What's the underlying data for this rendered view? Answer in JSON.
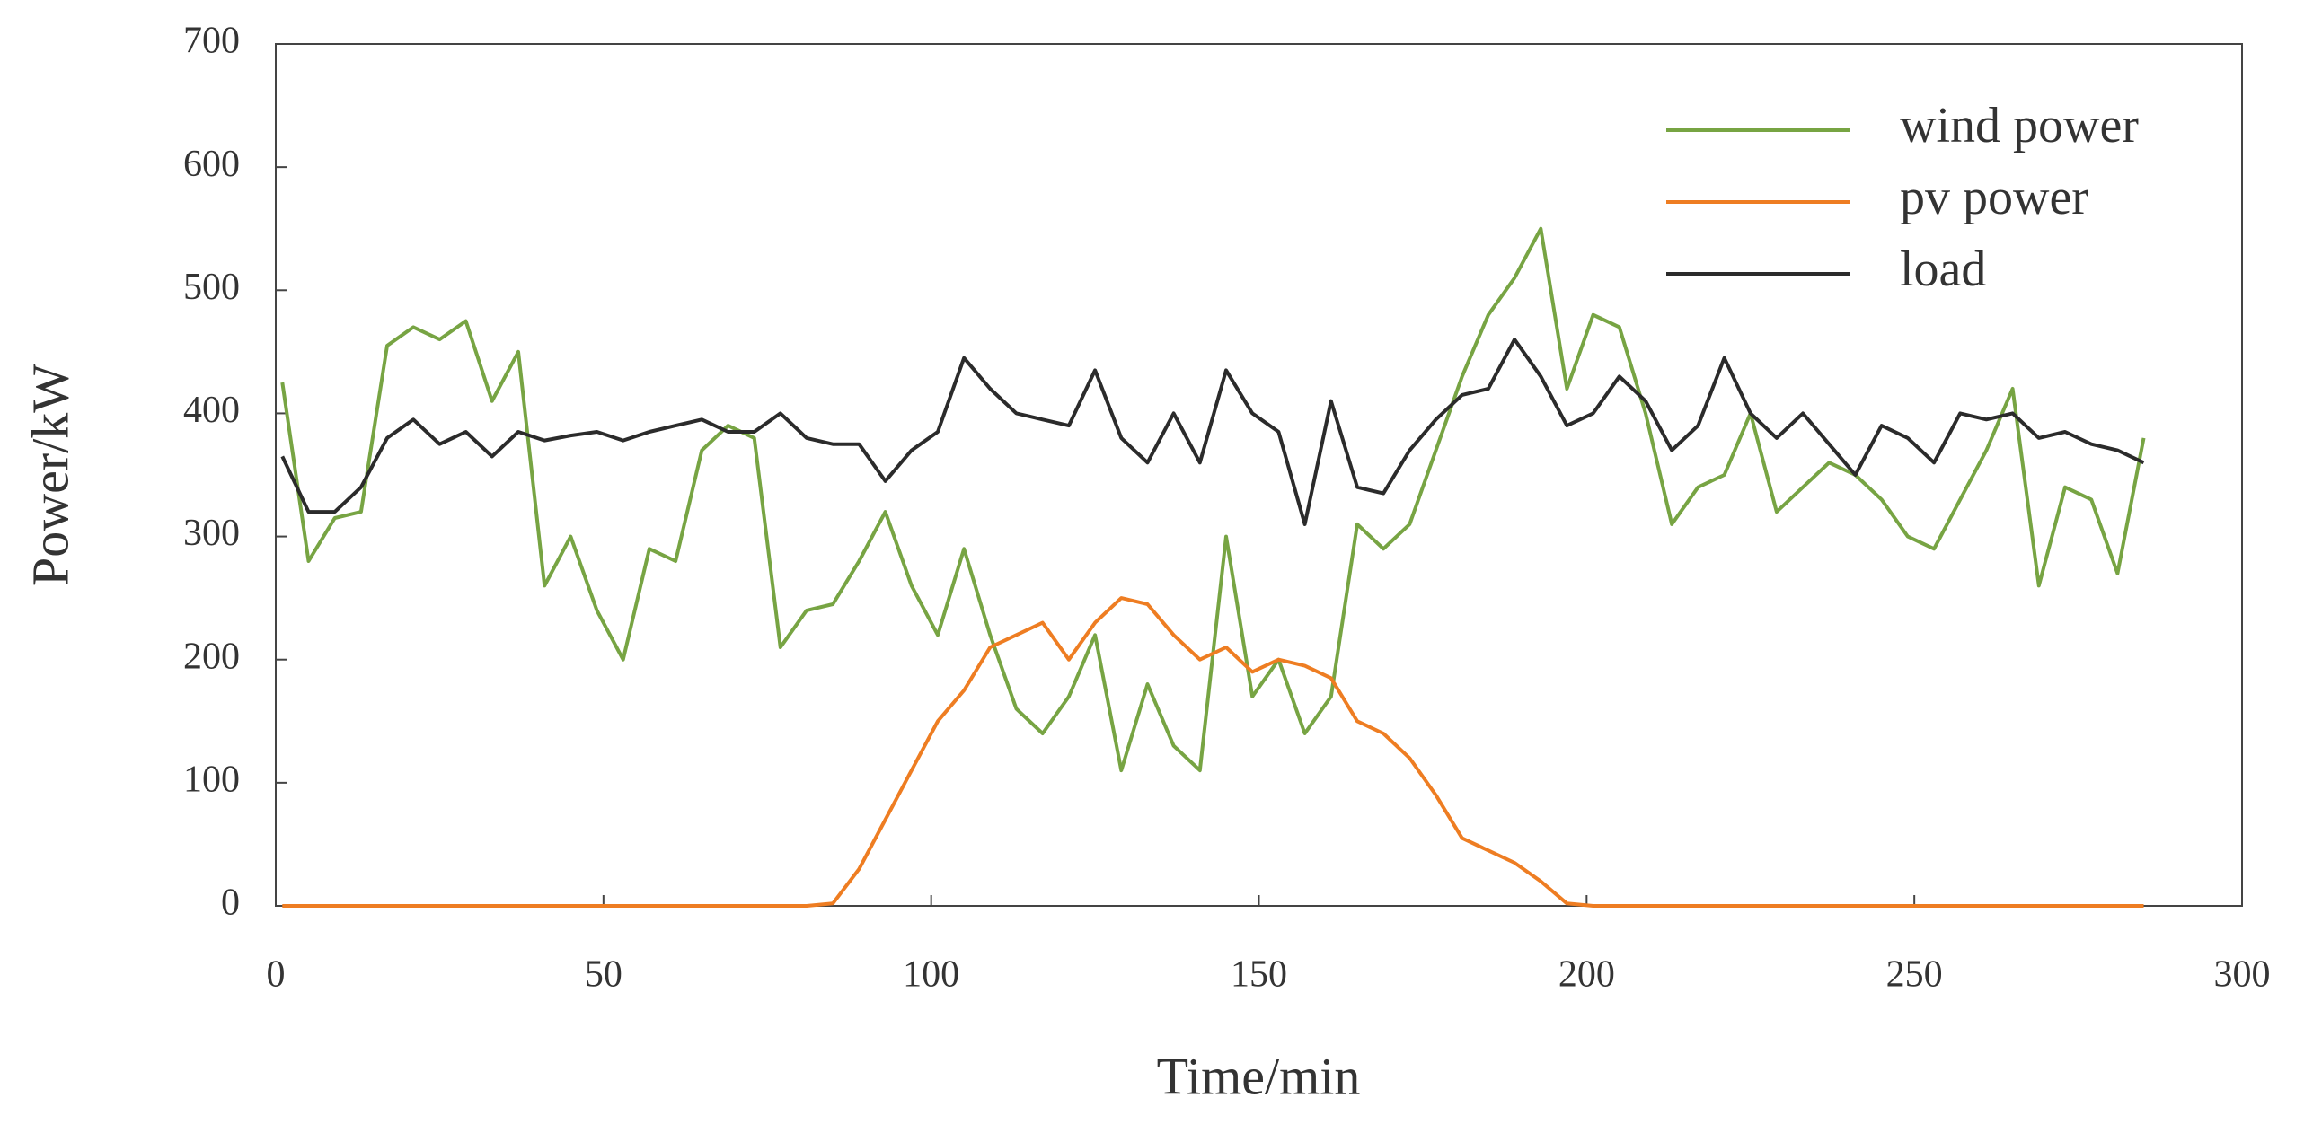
{
  "chart_data": {
    "type": "line",
    "x_label": "Time/min",
    "y_label": "Power/kW",
    "x": [
      1,
      5,
      9,
      13,
      17,
      21,
      25,
      29,
      33,
      37,
      41,
      45,
      49,
      53,
      57,
      61,
      65,
      69,
      73,
      77,
      81,
      85,
      89,
      93,
      97,
      101,
      105,
      109,
      113,
      117,
      121,
      125,
      129,
      133,
      137,
      141,
      145,
      149,
      153,
      157,
      161,
      165,
      169,
      173,
      177,
      181,
      185,
      189,
      193,
      197,
      201,
      205,
      209,
      213,
      217,
      221,
      225,
      229,
      233,
      237,
      241,
      245,
      249,
      253,
      257,
      261,
      265,
      269,
      273,
      277,
      281,
      285
    ],
    "series": [
      {
        "name": "wind power",
        "color": "#77a443",
        "values": [
          425,
          280,
          315,
          320,
          455,
          470,
          460,
          475,
          410,
          450,
          260,
          300,
          240,
          200,
          290,
          280,
          370,
          390,
          380,
          210,
          240,
          245,
          280,
          320,
          260,
          220,
          290,
          220,
          160,
          140,
          170,
          220,
          110,
          180,
          130,
          110,
          300,
          170,
          200,
          140,
          170,
          310,
          290,
          310,
          370,
          430,
          480,
          510,
          550,
          420,
          480,
          470,
          400,
          310,
          340,
          350,
          400,
          320,
          340,
          360,
          350,
          330,
          300,
          290,
          330,
          370,
          420,
          260,
          340,
          330,
          270,
          380
        ]
      },
      {
        "name": "pv power",
        "color": "#ee7d22",
        "values": [
          0,
          0,
          0,
          0,
          0,
          0,
          0,
          0,
          0,
          0,
          0,
          0,
          0,
          0,
          0,
          0,
          0,
          0,
          0,
          0,
          0,
          2,
          30,
          70,
          110,
          150,
          175,
          210,
          220,
          230,
          200,
          230,
          250,
          245,
          220,
          200,
          210,
          190,
          200,
          195,
          185,
          150,
          140,
          120,
          90,
          55,
          45,
          35,
          20,
          2,
          0,
          0,
          0,
          0,
          0,
          0,
          0,
          0,
          0,
          0,
          0,
          0,
          0,
          0,
          0,
          0,
          0,
          0,
          0,
          0,
          0,
          0
        ]
      },
      {
        "name": "load",
        "color": "#2b2b2b",
        "values": [
          365,
          320,
          320,
          340,
          380,
          395,
          375,
          385,
          365,
          385,
          378,
          382,
          385,
          378,
          385,
          390,
          395,
          385,
          385,
          400,
          380,
          375,
          375,
          345,
          370,
          385,
          445,
          420,
          400,
          395,
          390,
          435,
          380,
          360,
          400,
          360,
          435,
          400,
          385,
          310,
          410,
          340,
          335,
          370,
          395,
          415,
          420,
          460,
          430,
          390,
          400,
          430,
          410,
          370,
          390,
          445,
          400,
          380,
          400,
          375,
          350,
          390,
          380,
          360,
          400,
          395,
          400,
          380,
          385,
          375,
          370,
          360
        ]
      }
    ],
    "xlim": [
      0,
      300
    ],
    "xticks": [
      0,
      50,
      100,
      150,
      200,
      250,
      300
    ],
    "ylim": [
      0,
      700
    ],
    "yticks": [
      0,
      100,
      200,
      300,
      400,
      500,
      600,
      700
    ],
    "legend": "upper right"
  }
}
